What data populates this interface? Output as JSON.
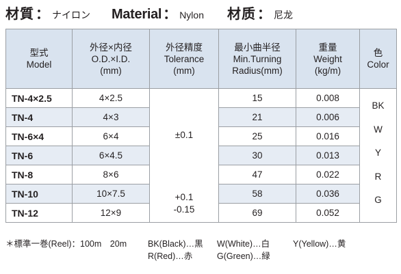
{
  "title": {
    "jp_label": "材質",
    "jp_value": "ナイロン",
    "en_label": "Material",
    "en_value": "Nylon",
    "cn_label": "材质",
    "cn_value": "尼龙",
    "colon": "："
  },
  "table": {
    "headers": [
      {
        "line1": "型式",
        "line2": "Model",
        "line3": ""
      },
      {
        "line1": "外径×内径",
        "line2": "O.D.×I.D.",
        "line3": "(mm)"
      },
      {
        "line1": "外径精度",
        "line2": "Tolerance",
        "line3": "(mm)"
      },
      {
        "line1": "最小曲半径",
        "line2": "Min.Turning",
        "line3": "Radius(mm)"
      },
      {
        "line1": "重量",
        "line2": "Weight",
        "line3": "(kg/m)"
      },
      {
        "line1": "色",
        "line2": "Color",
        "line3": ""
      }
    ],
    "rows": [
      {
        "model": "TN-4×2.5",
        "od_id": "4×2.5",
        "radius": "15",
        "weight": "0.008"
      },
      {
        "model": "TN-4",
        "od_id": "4×3",
        "radius": "21",
        "weight": "0.006"
      },
      {
        "model": "TN-6×4",
        "od_id": "6×4",
        "radius": "25",
        "weight": "0.016"
      },
      {
        "model": "TN-6",
        "od_id": "6×4.5",
        "radius": "30",
        "weight": "0.013"
      },
      {
        "model": "TN-8",
        "od_id": "8×6",
        "radius": "47",
        "weight": "0.022"
      },
      {
        "model": "TN-10",
        "od_id": "10×7.5",
        "radius": "58",
        "weight": "0.036"
      },
      {
        "model": "TN-12",
        "od_id": "12×9",
        "radius": "69",
        "weight": "0.052"
      }
    ],
    "tolerance_a": "±0.1",
    "tolerance_b_line1": "+0.1",
    "tolerance_b_line2": "-0.15",
    "colors": [
      "BK",
      "W",
      "Y",
      "R",
      "G"
    ]
  },
  "footer": {
    "reel": "＊標準一巻(Reel)：100m　20m",
    "bk": "BK(Black)…黒",
    "w": "W(White)…白",
    "y": "Y(Yellow)…黄",
    "r": "R(Red)…赤",
    "g": "G(Green)…緑"
  },
  "colors": {
    "header_bg": "#d9e3ef",
    "row_band": "#e6ecf4",
    "border": "#9a9ea3",
    "text": "#231f20"
  }
}
